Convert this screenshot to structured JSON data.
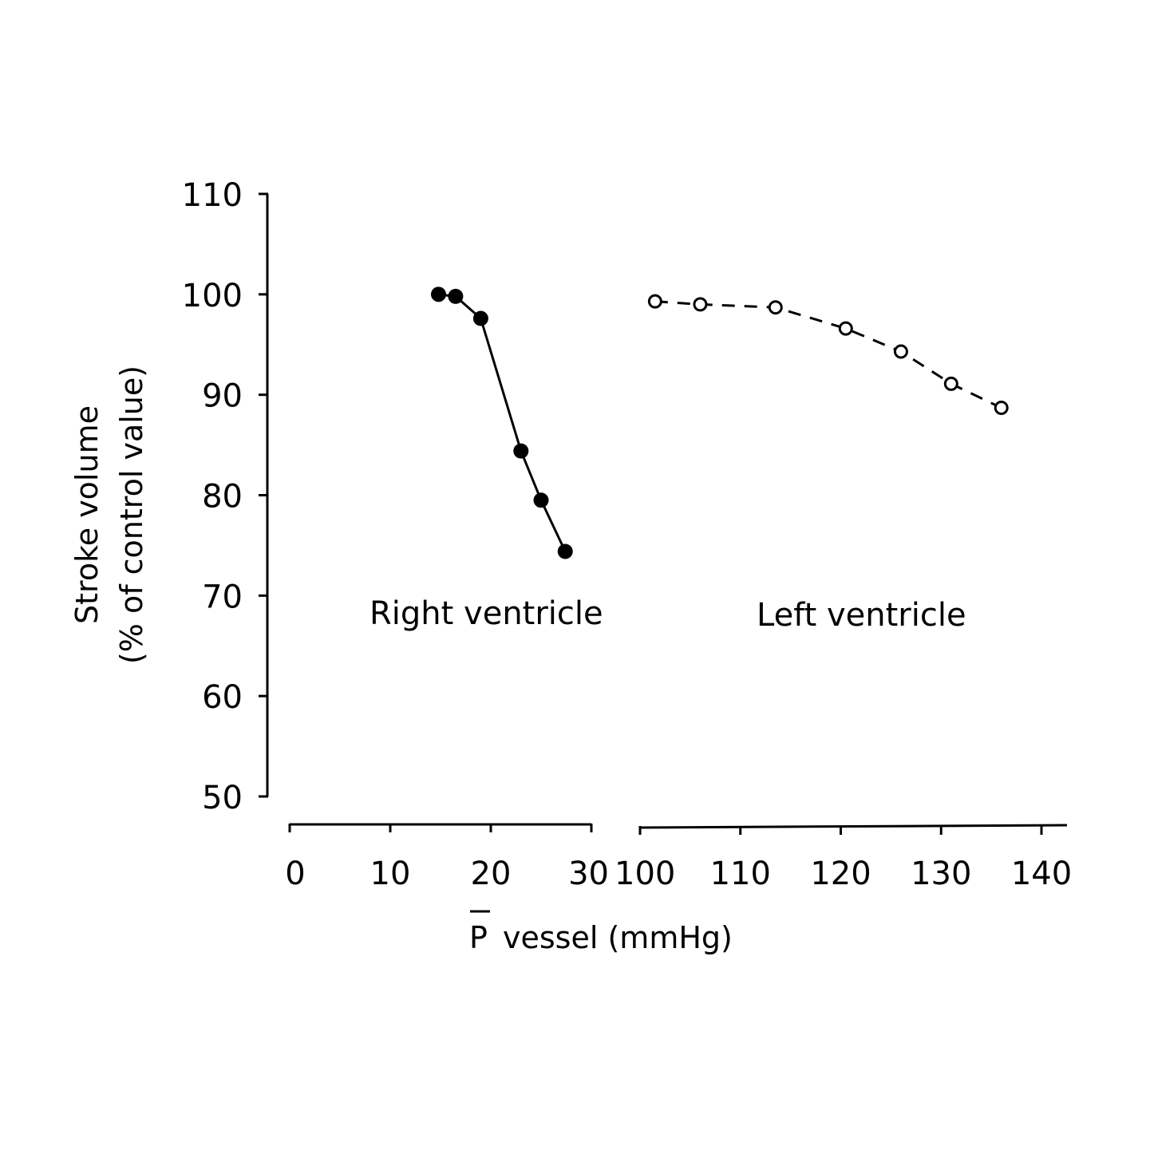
{
  "chart_data": {
    "type": "scatter",
    "ylabel_line1": "Stroke volume",
    "ylabel_line2": "(% of control value)",
    "xlabel": "vessel (mmHg)",
    "xlabel_symbol": "P",
    "ylim": [
      50,
      110
    ],
    "yticks": [
      "50",
      "60",
      "70",
      "80",
      "90",
      "100",
      "110"
    ],
    "x_axes": [
      {
        "name": "right",
        "xlim": [
          0,
          30
        ],
        "ticks": [
          "0",
          "10",
          "20",
          "30"
        ]
      },
      {
        "name": "left",
        "xlim": [
          100,
          140
        ],
        "ticks": [
          "100",
          "110",
          "120",
          "130",
          "140"
        ]
      }
    ],
    "series": [
      {
        "name": "Right ventricle",
        "axis": "right",
        "marker": "filled-circle",
        "line": "solid",
        "color": "#000000",
        "x": [
          14.8,
          16.5,
          19,
          23,
          25,
          27.4
        ],
        "y": [
          100,
          99.8,
          97.6,
          84.4,
          79.5,
          74.4
        ]
      },
      {
        "name": "Left ventricle",
        "axis": "left",
        "marker": "open-circle",
        "line": "dashed",
        "color": "#000000",
        "x": [
          101.5,
          106,
          113.5,
          120.5,
          126,
          131,
          136
        ],
        "y": [
          99.3,
          99,
          98.7,
          96.6,
          94.3,
          91.1,
          88.7
        ]
      }
    ]
  }
}
